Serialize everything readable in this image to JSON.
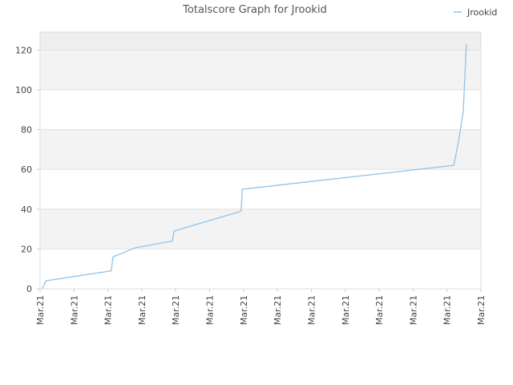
{
  "chart_data": {
    "type": "line",
    "title": "Totalscore Graph for Jrookid",
    "series": [
      {
        "name": "Jrookid",
        "color": "#8ec4ee",
        "x": [
          0.07,
          0.12,
          0.17,
          2.1,
          2.15,
          2.79,
          3.9,
          3.95,
          5.93,
          5.96,
          12.2,
          12.36,
          12.48,
          12.57
        ],
        "values": [
          0,
          2,
          4,
          9,
          16,
          20.5,
          24,
          29,
          39,
          50,
          62,
          76,
          89.5,
          123
        ]
      }
    ],
    "xlim": [
      0,
      13
    ],
    "xticks": [
      {
        "value": 0,
        "label": "Mar.21"
      },
      {
        "value": 1,
        "label": "Mar.21"
      },
      {
        "value": 2,
        "label": "Mar.21"
      },
      {
        "value": 3,
        "label": "Mar.21"
      },
      {
        "value": 4,
        "label": "Mar.21"
      },
      {
        "value": 5,
        "label": "Mar.21"
      },
      {
        "value": 6,
        "label": "Mar.21"
      },
      {
        "value": 7,
        "label": "Mar.21"
      },
      {
        "value": 8,
        "label": "Mar.21"
      },
      {
        "value": 9,
        "label": "Mar.21"
      },
      {
        "value": 10,
        "label": "Mar.21"
      },
      {
        "value": 11,
        "label": "Mar.21"
      },
      {
        "value": 12,
        "label": "Mar.21"
      },
      {
        "value": 13,
        "label": "Mar.21"
      }
    ],
    "ylim": [
      0,
      129
    ],
    "yticks": [
      0,
      20,
      40,
      60,
      80,
      100,
      120
    ],
    "grid": true,
    "legend": "top-right"
  }
}
